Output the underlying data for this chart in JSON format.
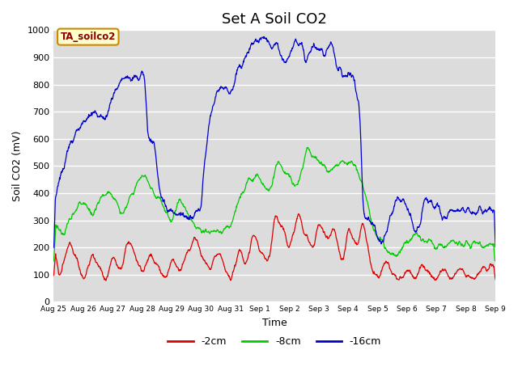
{
  "title": "Set A Soil CO2",
  "ylabel": "Soil CO2 (mV)",
  "xlabel": "Time",
  "ylim": [
    0,
    1000
  ],
  "background_color": "#dcdcdc",
  "legend_label": "TA_soilco2",
  "legend_box_facecolor": "#ffffcc",
  "legend_box_edgecolor": "#cc8800",
  "legend_box_textcolor": "#8B0000",
  "series_labels": [
    "-2cm",
    "-8cm",
    "-16cm"
  ],
  "series_colors": [
    "#dd0000",
    "#00cc00",
    "#0000cc"
  ],
  "xtick_labels": [
    "Aug 25",
    "Aug 26",
    "Aug 27",
    "Aug 28",
    "Aug 29",
    "Aug 30",
    "Aug 31",
    "Sep 1",
    "Sep 2",
    "Sep 3",
    "Sep 4",
    "Sep 5",
    "Sep 6",
    "Sep 7",
    "Sep 8",
    "Sep 9"
  ],
  "title_fontsize": 13,
  "yticks": [
    0,
    100,
    200,
    300,
    400,
    500,
    600,
    700,
    800,
    900,
    1000
  ]
}
